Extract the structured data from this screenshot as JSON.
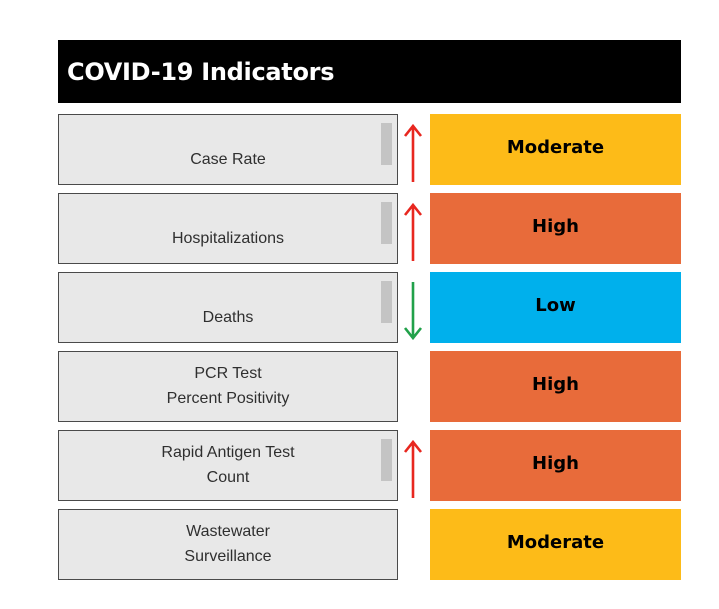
{
  "title": "COVID-19 Indicators",
  "colors": {
    "moderate": "#fdbb18",
    "high": "#e86b3a",
    "low": "#00b0ec",
    "arrow_up": "#e8271f",
    "arrow_down": "#21a14a"
  },
  "indicators": [
    {
      "label": "Case Rate",
      "trend": "up",
      "trend_icon": "arrow-up-icon",
      "status": "Moderate",
      "status_color": "#fdbb18"
    },
    {
      "label": "Hospitalizations",
      "trend": "up",
      "trend_icon": "arrow-up-icon",
      "status": "High",
      "status_color": "#e86b3a"
    },
    {
      "label": "Deaths",
      "trend": "down",
      "trend_icon": "arrow-down-icon",
      "status": "Low",
      "status_color": "#00b0ec"
    },
    {
      "label": "PCR Test\nPercent Positivity",
      "trend": "none",
      "trend_icon": "",
      "status": "High",
      "status_color": "#e86b3a"
    },
    {
      "label": "Rapid Antigen Test\nCount",
      "trend": "up",
      "trend_icon": "arrow-up-icon",
      "status": "High",
      "status_color": "#e86b3a"
    },
    {
      "label": "Wastewater\nSurveillance",
      "trend": "none",
      "trend_icon": "",
      "status": "Moderate",
      "status_color": "#fdbb18"
    }
  ]
}
